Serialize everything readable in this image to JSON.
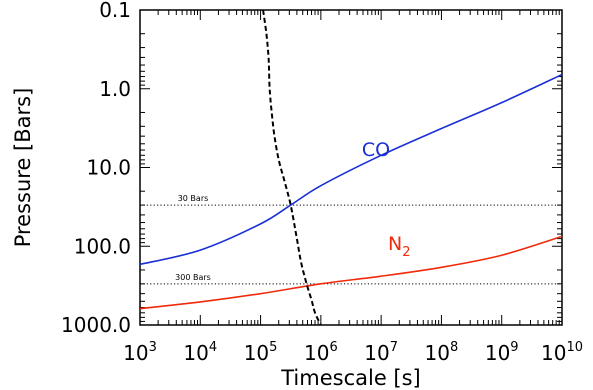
{
  "chart_data": {
    "type": "line",
    "xlabel": "Timescale [s]",
    "ylabel": "Pressure [Bars]",
    "x_scale": "log",
    "y_scale": "log",
    "y_inverted": true,
    "xlim": [
      1000,
      10000000000
    ],
    "ylim": [
      0.1,
      1000
    ],
    "grid": false,
    "x_tick_values": [
      1000,
      10000,
      100000,
      1000000,
      10000000,
      100000000,
      1000000000,
      10000000000
    ],
    "x_tick_labels": [
      {
        "base": "10",
        "exp": "3"
      },
      {
        "base": "10",
        "exp": "4"
      },
      {
        "base": "10",
        "exp": "5"
      },
      {
        "base": "10",
        "exp": "6"
      },
      {
        "base": "10",
        "exp": "7"
      },
      {
        "base": "10",
        "exp": "8"
      },
      {
        "base": "10",
        "exp": "9"
      },
      {
        "base": "10",
        "exp": "10"
      }
    ],
    "y_tick_values": [
      0.1,
      1,
      10,
      100,
      1000
    ],
    "y_tick_labels": [
      "0.1",
      "1.0",
      "10.0",
      "100.0",
      "1000.0"
    ],
    "series": [
      {
        "name": "CO",
        "label_main": "CO",
        "label_sub": "",
        "color": "#1a2fd6",
        "style": "solid",
        "x": [
          1000,
          10000,
          100000,
          316000,
          1000000,
          10000000,
          100000000,
          1000000000,
          10000000000
        ],
        "y": [
          170,
          112,
          52,
          30,
          17,
          7,
          3.2,
          1.5,
          0.66
        ]
      },
      {
        "name": "N2",
        "label_main": "N",
        "label_sub": "2",
        "color": "#f02a0a",
        "style": "solid",
        "x": [
          1000,
          10000,
          100000,
          1000000,
          10000000,
          100000000,
          1000000000,
          10000000000
        ],
        "y": [
          620,
          510,
          400,
          300,
          240,
          185,
          130,
          75
        ]
      },
      {
        "name": "",
        "color": "#000000",
        "style": "dashed",
        "x": [
          110000,
          125000,
          135000,
          138000,
          140000,
          145000,
          155000,
          170000,
          200000,
          250000,
          316000,
          400000,
          470000,
          580000,
          700000,
          800000,
          1000000
        ],
        "y": [
          0.1,
          0.2,
          0.38,
          0.55,
          0.85,
          1.3,
          2.2,
          4.0,
          8.0,
          15,
          30,
          80,
          160,
          300,
          480,
          700,
          1000
        ]
      }
    ],
    "reference_lines": [
      {
        "y": 30,
        "label": "30 Bars",
        "style": "dotted"
      },
      {
        "y": 300,
        "label": "300 Bars",
        "style": "dotted"
      }
    ]
  }
}
